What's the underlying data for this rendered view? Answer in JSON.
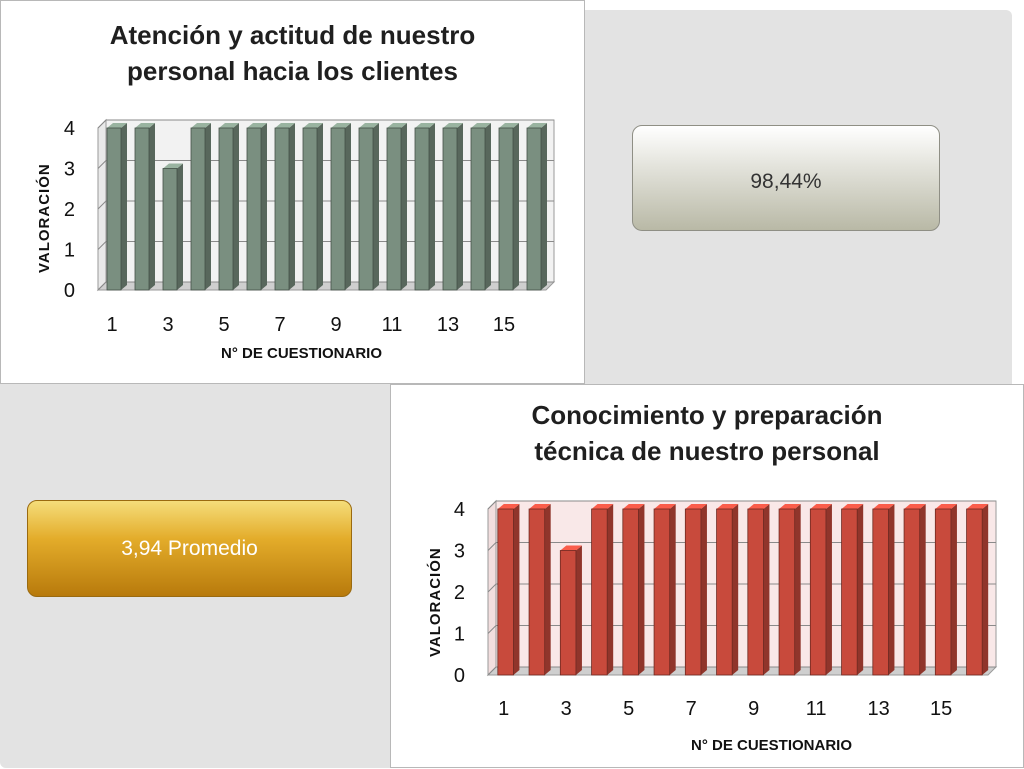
{
  "theme": {
    "bar_green": "#7a8f80",
    "bar_red": "#c84a3c",
    "box_gold": "#e0a82a"
  },
  "chart_data": [
    {
      "type": "bar",
      "title": [
        "Atención y actitud de nuestro",
        "personal hacia los clientes"
      ],
      "xlabel": "N° DE CUESTIONARIO",
      "ylabel": "VALORACIÓN",
      "ylim": [
        0,
        4
      ],
      "yticks": [
        "0",
        "1",
        "2",
        "3",
        "4"
      ],
      "xticks": [
        "1",
        "3",
        "5",
        "7",
        "9",
        "11",
        "13",
        "15"
      ],
      "categories": [
        1,
        2,
        3,
        4,
        5,
        6,
        7,
        8,
        9,
        10,
        11,
        12,
        13,
        14,
        15,
        16
      ],
      "values": [
        4,
        4,
        3,
        4,
        4,
        4,
        4,
        4,
        4,
        4,
        4,
        4,
        4,
        4,
        4,
        4
      ],
      "color": "#7a8f80"
    },
    {
      "type": "bar",
      "title": [
        "Conocimiento y preparación",
        "técnica de nuestro personal"
      ],
      "xlabel": "N° DE CUESTIONARIO",
      "ylabel": "VALORACIÓN",
      "ylim": [
        0,
        4
      ],
      "yticks": [
        "0",
        "1",
        "2",
        "3",
        "4"
      ],
      "xticks": [
        "1",
        "3",
        "5",
        "7",
        "9",
        "11",
        "13",
        "15"
      ],
      "categories": [
        1,
        2,
        3,
        4,
        5,
        6,
        7,
        8,
        9,
        10,
        11,
        12,
        13,
        14,
        15,
        16
      ],
      "values": [
        4,
        4,
        3,
        4,
        4,
        4,
        4,
        4,
        4,
        4,
        4,
        4,
        4,
        4,
        4,
        4
      ],
      "color": "#c84a3c"
    }
  ],
  "callouts": {
    "percentage": "98,44%",
    "average": "3,94  Promedio"
  }
}
